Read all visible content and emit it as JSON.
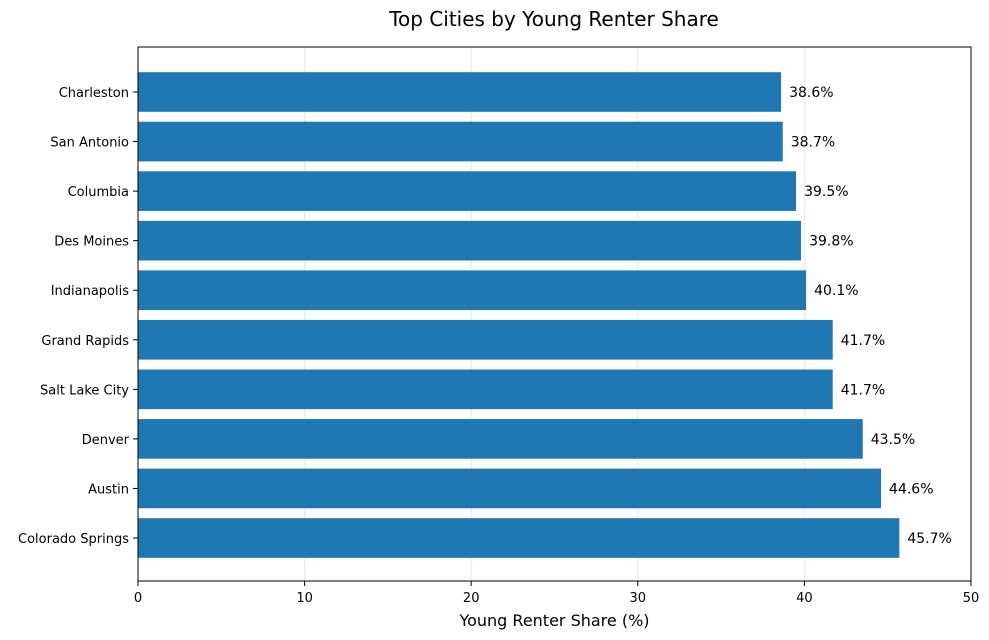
{
  "chart_data": {
    "type": "bar",
    "orientation": "horizontal",
    "title": "Top Cities by Young Renter Share",
    "xlabel": "Young Renter Share (%)",
    "ylabel": "",
    "xlim": [
      0,
      50
    ],
    "xticks": [
      "0",
      "10",
      "20",
      "30",
      "40",
      "50"
    ],
    "grid": "vertical",
    "bar_color": "#1f77b4",
    "categories": [
      "Charleston",
      "San Antonio",
      "Columbia",
      "Des Moines",
      "Indianapolis",
      "Grand Rapids",
      "Salt Lake City",
      "Denver",
      "Austin",
      "Colorado Springs"
    ],
    "values": [
      38.6,
      38.7,
      39.5,
      39.8,
      40.1,
      41.7,
      41.7,
      43.5,
      44.6,
      45.7
    ],
    "data_labels": [
      "38.6%",
      "38.7%",
      "39.5%",
      "39.8%",
      "40.1%",
      "41.7%",
      "41.7%",
      "43.5%",
      "44.6%",
      "45.7%"
    ]
  }
}
